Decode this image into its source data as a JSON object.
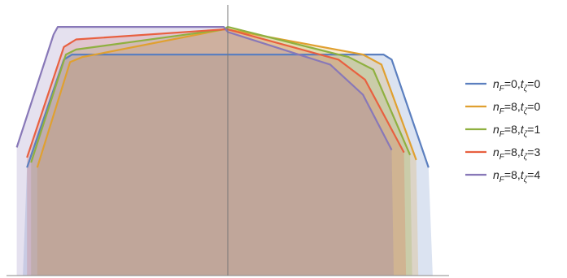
{
  "chart_data": {
    "type": "area",
    "title": "",
    "xlabel": "",
    "ylabel": "",
    "grid": false,
    "legend_position": "right",
    "series": [
      {
        "name": "n_F=0,t_ζ=0",
        "label": {
          "var1": "n",
          "sub1": "F",
          "val1": "=0,",
          "var2": "t",
          "sub2": "ζ",
          "val2": "=0"
        },
        "color": "#5b7fbf",
        "points": [
          [
            -1.0,
            0.0
          ],
          [
            -0.98,
            0.43
          ],
          [
            -0.8,
            0.86
          ],
          [
            -0.76,
            0.88
          ],
          [
            0.76,
            0.88
          ],
          [
            0.8,
            0.86
          ],
          [
            0.98,
            0.43
          ],
          [
            1.0,
            0.0
          ]
        ]
      },
      {
        "name": "n_F=8,t_ζ=0",
        "label": {
          "var1": "n",
          "sub1": "F",
          "val1": "=8,",
          "var2": "t",
          "sub2": "ζ",
          "val2": "=0"
        },
        "color": "#e0a030",
        "points": [
          [
            -0.93,
            0.0
          ],
          [
            -0.93,
            0.43
          ],
          [
            -0.77,
            0.85
          ],
          [
            -0.71,
            0.87
          ],
          [
            -0.02,
            0.98
          ],
          [
            0.0,
            0.98
          ],
          [
            0.66,
            0.88
          ],
          [
            0.75,
            0.84
          ],
          [
            0.92,
            0.46
          ],
          [
            0.93,
            0.0
          ]
        ]
      },
      {
        "name": "n_F=8,t_ζ=1",
        "label": {
          "var1": "n",
          "sub1": "F",
          "val1": "=8,",
          "var2": "t",
          "sub2": "ζ",
          "val2": "=1"
        },
        "color": "#8fb040",
        "points": [
          [
            -0.96,
            0.0
          ],
          [
            -0.96,
            0.45
          ],
          [
            -0.79,
            0.88
          ],
          [
            -0.74,
            0.9
          ],
          [
            -0.02,
            0.98
          ],
          [
            0.0,
            0.99
          ],
          [
            0.59,
            0.87
          ],
          [
            0.71,
            0.82
          ],
          [
            0.89,
            0.48
          ],
          [
            0.9,
            0.0
          ]
        ]
      },
      {
        "name": "n_F=8,t_ζ=3",
        "label": {
          "var1": "n",
          "sub1": "F",
          "val1": "=8,",
          "var2": "t",
          "sub2": "ζ",
          "val2": "=3"
        },
        "color": "#e86040",
        "points": [
          [
            -0.98,
            0.0
          ],
          [
            -0.98,
            0.47
          ],
          [
            -0.8,
            0.91
          ],
          [
            -0.74,
            0.94
          ],
          [
            -0.02,
            0.98
          ],
          [
            0.0,
            0.98
          ],
          [
            0.54,
            0.86
          ],
          [
            0.67,
            0.78
          ],
          [
            0.86,
            0.49
          ],
          [
            0.87,
            0.0
          ]
        ]
      },
      {
        "name": "n_F=8,t_ζ=4",
        "label": {
          "var1": "n",
          "sub1": "F",
          "val1": "=8,",
          "var2": "t",
          "sub2": "ζ",
          "val2": "=4"
        },
        "color": "#8878b8",
        "points": [
          [
            -1.03,
            0.0
          ],
          [
            -1.03,
            0.51
          ],
          [
            -0.85,
            0.96
          ],
          [
            -0.83,
            0.99
          ],
          [
            -0.02,
            0.99
          ],
          [
            0.0,
            0.97
          ],
          [
            0.5,
            0.84
          ],
          [
            0.66,
            0.72
          ],
          [
            0.8,
            0.5
          ],
          [
            0.81,
            0.0
          ]
        ]
      }
    ],
    "xlim": [
      -1.08,
      1.08
    ],
    "ylim": [
      0,
      1.0
    ]
  }
}
